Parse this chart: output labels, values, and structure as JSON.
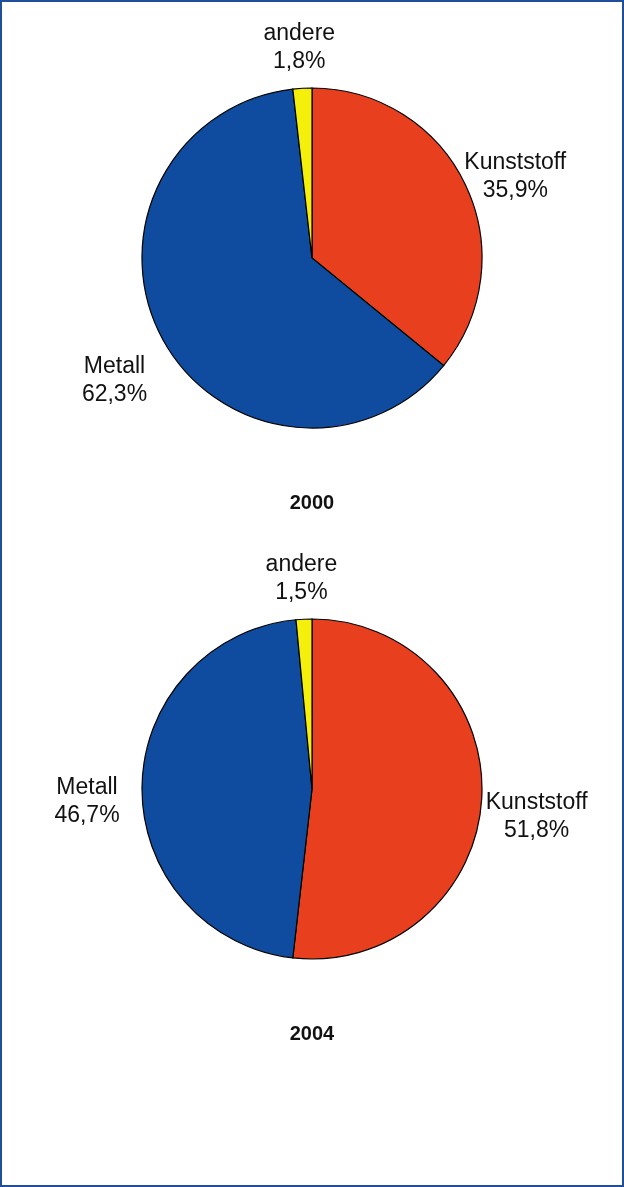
{
  "chart_data": [
    {
      "type": "pie",
      "title": "2000",
      "categories": [
        "Kunststoff",
        "Metall",
        "andere"
      ],
      "values": [
        35.9,
        62.3,
        1.8
      ],
      "colors": [
        "#e8401f",
        "#0f4c9f",
        "#f5ef0c"
      ],
      "value_labels": [
        "35,9%",
        "62,3%",
        "1,8%"
      ]
    },
    {
      "type": "pie",
      "title": "2004",
      "categories": [
        "Kunststoff",
        "Metall",
        "andere"
      ],
      "values": [
        51.8,
        46.7,
        1.5
      ],
      "colors": [
        "#e8401f",
        "#0f4c9f",
        "#f5ef0c"
      ],
      "value_labels": [
        "51,8%",
        "46,7%",
        "1,5%"
      ]
    }
  ]
}
